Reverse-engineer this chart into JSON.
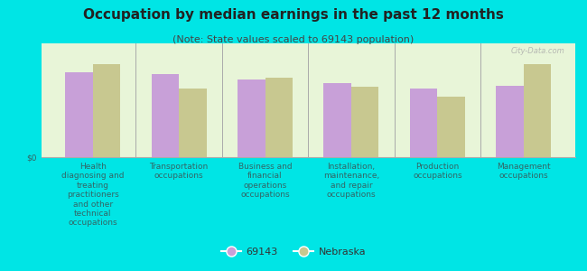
{
  "title": "Occupation by median earnings in the past 12 months",
  "subtitle": "(Note: State values scaled to 69143 population)",
  "categories": [
    "Health\ndiagnosing and\ntreating\npractitioners\nand other\ntechnical\noccupations",
    "Transportation\noccupations",
    "Business and\nfinancial\noperations\noccupations",
    "Installation,\nmaintenance,\nand repair\noccupations",
    "Production\noccupations",
    "Management\noccupations"
  ],
  "series": [
    {
      "label": "69143",
      "color": "#c8a0d8",
      "values": [
        75,
        73,
        68,
        65,
        60,
        63
      ]
    },
    {
      "label": "Nebraska",
      "color": "#c8c890",
      "values": [
        82,
        60,
        70,
        62,
        53,
        82
      ]
    }
  ],
  "ylim": [
    0,
    100
  ],
  "ylabel": "$0",
  "bar_width": 0.32,
  "plot_bg_top": "#e8f5d8",
  "plot_bg_bottom": "#f0f8e0",
  "figure_bg": "#00e5e5",
  "watermark": "City-Data.com",
  "title_fontsize": 11,
  "subtitle_fontsize": 8,
  "tick_fontsize": 6.5,
  "legend_fontsize": 8
}
